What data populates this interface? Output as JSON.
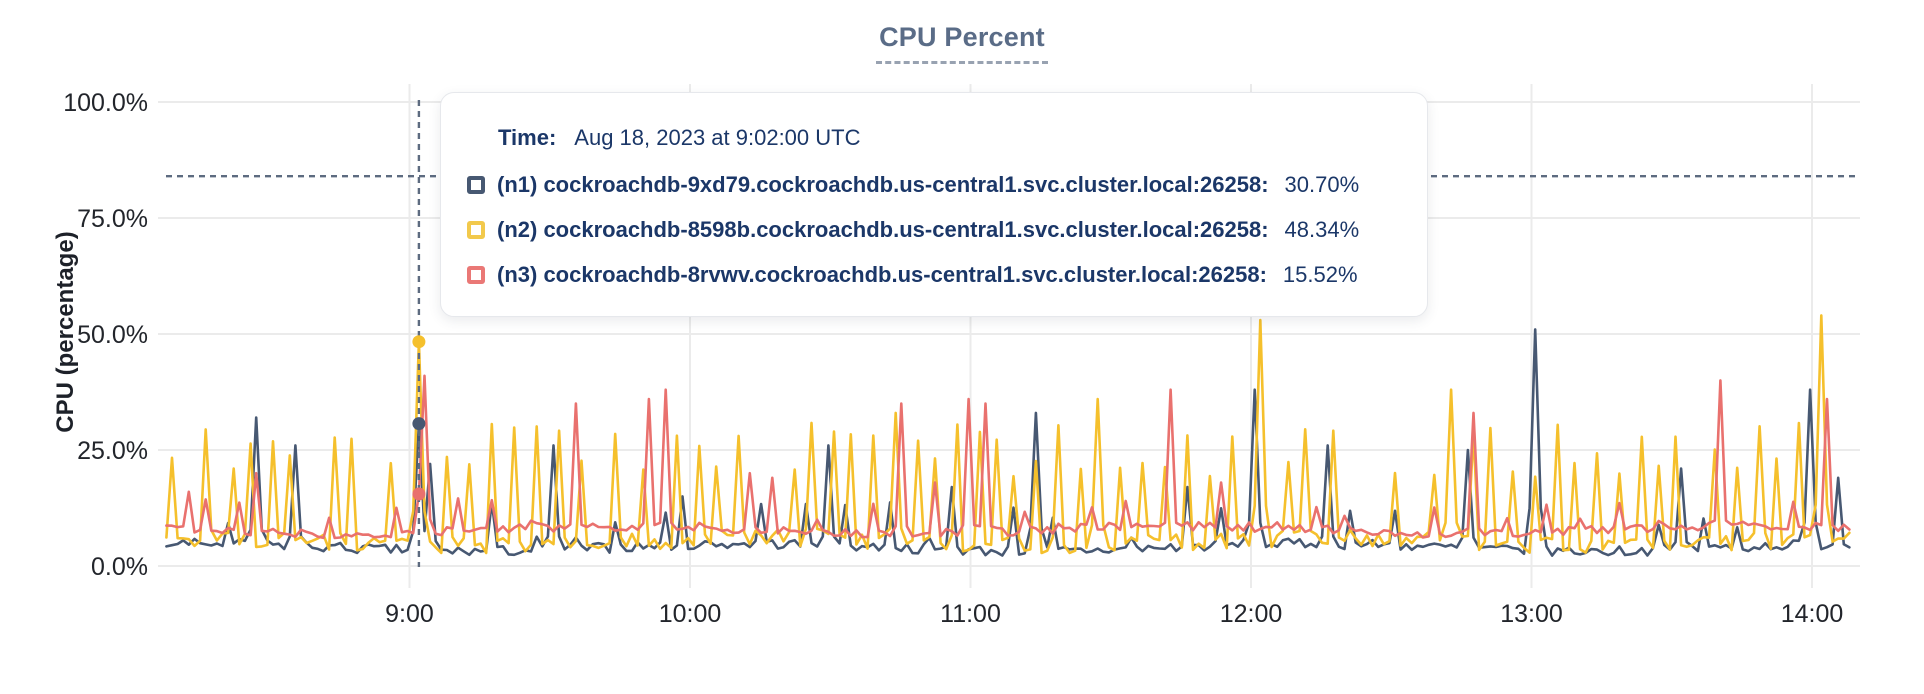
{
  "title": "CPU Percent",
  "y_axis": {
    "label": "CPU (percentage)"
  },
  "tooltip": {
    "time_label": "Time:",
    "time_value": "Aug 18, 2023 at 9:02:00 UTC",
    "rows": [
      {
        "name": "(n1) cockroachdb-9xd79.cockroachdb.us-central1.svc.cluster.local:26258:",
        "value": "30.70%",
        "color": "#475872"
      },
      {
        "name": "(n2) cockroachdb-8598b.cockroachdb.us-central1.svc.cluster.local:26258:",
        "value": "48.34%",
        "color": "#F2C94C"
      },
      {
        "name": "(n3) cockroachdb-8rvwv.cockroachdb.us-central1.svc.cluster.local:26258:",
        "value": "15.52%",
        "color": "#EA7876"
      }
    ]
  },
  "chart_data": {
    "type": "line",
    "title": "CPU Percent",
    "ylabel": "CPU (percentage)",
    "ylim": [
      0,
      100
    ],
    "grid": true,
    "grid_color": "#ebebeb",
    "tick_color": "#22252b",
    "cursor_color": "#5d6b80",
    "y_ticks": [
      {
        "value": 100,
        "label": "100.0%"
      },
      {
        "value": 75,
        "label": "75.0%"
      },
      {
        "value": 50,
        "label": "50.0%"
      },
      {
        "value": 25,
        "label": "25.0%"
      },
      {
        "value": 0,
        "label": "0.0%"
      }
    ],
    "x_ticks": [
      {
        "minutes": 540,
        "label": "9:00"
      },
      {
        "minutes": 600,
        "label": "10:00"
      },
      {
        "minutes": 660,
        "label": "11:00"
      },
      {
        "minutes": 720,
        "label": "12:00"
      },
      {
        "minutes": 780,
        "label": "13:00"
      },
      {
        "minutes": 840,
        "label": "14:00"
      }
    ],
    "x_start_min": 488,
    "x_end_min": 848.4,
    "sample_step_min": 1.2,
    "cursor": {
      "minutes": 542,
      "time": "9:02:00 UTC",
      "crosshair_pct": 84,
      "values": {
        "n1": 30.7,
        "n2": 48.34,
        "n3": 15.52
      }
    },
    "series": [
      {
        "short": "n1",
        "name": "(n1) cockroachdb-9xd79.cockroachdb.us-central1.svc.cluster.local:26258",
        "color": "#475872",
        "cursor_value_pct": 30.7,
        "baseline": 4.0,
        "baseline_jitter": 1.1,
        "seed": 7,
        "comb": {
          "phase": 4,
          "period_min": 8.2,
          "height_min": 6,
          "height_max": 14,
          "half_width": 1.4,
          "dropout": 0.35
        },
        "spikes_min_pct": [
          [
            507,
            32
          ],
          [
            515,
            26
          ],
          [
            542,
            30.7
          ],
          [
            544.2,
            22
          ],
          [
            571,
            26
          ],
          [
            598,
            15
          ],
          [
            629,
            26
          ],
          [
            656,
            17
          ],
          [
            674,
            33
          ],
          [
            706,
            17
          ],
          [
            721,
            38
          ],
          [
            736,
            26
          ],
          [
            766,
            25
          ],
          [
            781,
            51
          ],
          [
            812,
            21
          ],
          [
            839,
            38
          ],
          [
            845,
            19
          ]
        ]
      },
      {
        "short": "n2",
        "name": "(n2) cockroachdb-8598b.cockroachdb.us-central1.svc.cluster.local:26258",
        "color": "#F5C02C",
        "cursor_value_pct": 48.34,
        "baseline": 5.2,
        "baseline_jitter": 1.9,
        "seed": 13,
        "comb": {
          "phase": 1.5,
          "period_min": 4.4,
          "height_min": 19,
          "height_max": 31,
          "half_width": 1.35,
          "dropout": 0.12
        },
        "spikes_min_pct": [
          [
            542,
            48.34
          ],
          [
            644,
            33
          ],
          [
            687,
            36
          ],
          [
            722,
            53
          ],
          [
            763,
            38
          ],
          [
            842,
            54
          ]
        ]
      },
      {
        "short": "n3",
        "name": "(n3) cockroachdb-8rvwv.cockroachdb.us-central1.svc.cluster.local:26258",
        "color": "#E9716E",
        "cursor_value_pct": 15.52,
        "baseline": 7.8,
        "baseline_jitter": 1.0,
        "seed": 21,
        "comb": {
          "phase": 2.5,
          "period_min": 6.8,
          "height_min": 9,
          "height_max": 15,
          "half_width": 1.6,
          "dropout": 0.3
        },
        "spikes_min_pct": [
          [
            493,
            16
          ],
          [
            507,
            20
          ],
          [
            543.6,
            41
          ],
          [
            575,
            35
          ],
          [
            591,
            36
          ],
          [
            595,
            38
          ],
          [
            613,
            20
          ],
          [
            617,
            19
          ],
          [
            645,
            35
          ],
          [
            652,
            18
          ],
          [
            660,
            36
          ],
          [
            663.5,
            35
          ],
          [
            703,
            38
          ],
          [
            713,
            18
          ],
          [
            767,
            33
          ],
          [
            820,
            40
          ],
          [
            843,
            36
          ]
        ]
      }
    ]
  }
}
